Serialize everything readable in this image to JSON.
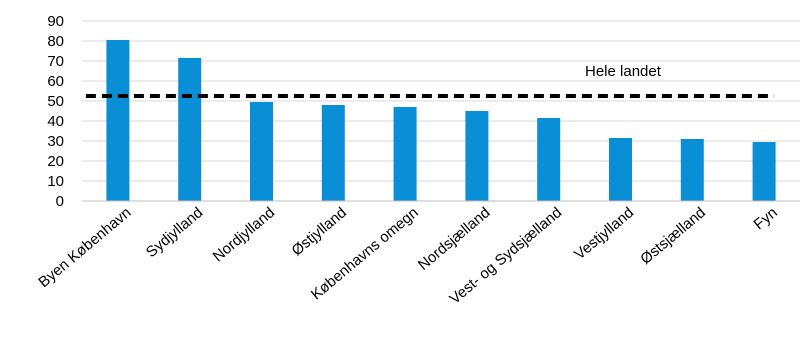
{
  "chart_data": {
    "type": "bar",
    "title": "",
    "xlabel": "",
    "ylabel": "",
    "ylim": [
      0,
      90
    ],
    "yticks": [
      0,
      10,
      20,
      30,
      40,
      50,
      60,
      70,
      80,
      90
    ],
    "grid": true,
    "categories": [
      "Byen København",
      "Sydjylland",
      "Nordjylland",
      "Østjylland",
      "Københavns omegn",
      "Nordsjælland",
      "Vest- og Sydsjælland",
      "Vestjylland",
      "Østsjælland",
      "Fyn"
    ],
    "series": [
      {
        "values": [
          80.5,
          71.5,
          49.5,
          48,
          47,
          45,
          41.5,
          31.5,
          31,
          29.5
        ]
      }
    ],
    "reference_line": {
      "label": "Hele landet",
      "value": 52.5,
      "style": "dashed"
    },
    "colors": {
      "bar": "#0a8fd6",
      "reference": "#000000",
      "grid": "#d9d9d9",
      "axis": "#bfbfbf"
    }
  }
}
